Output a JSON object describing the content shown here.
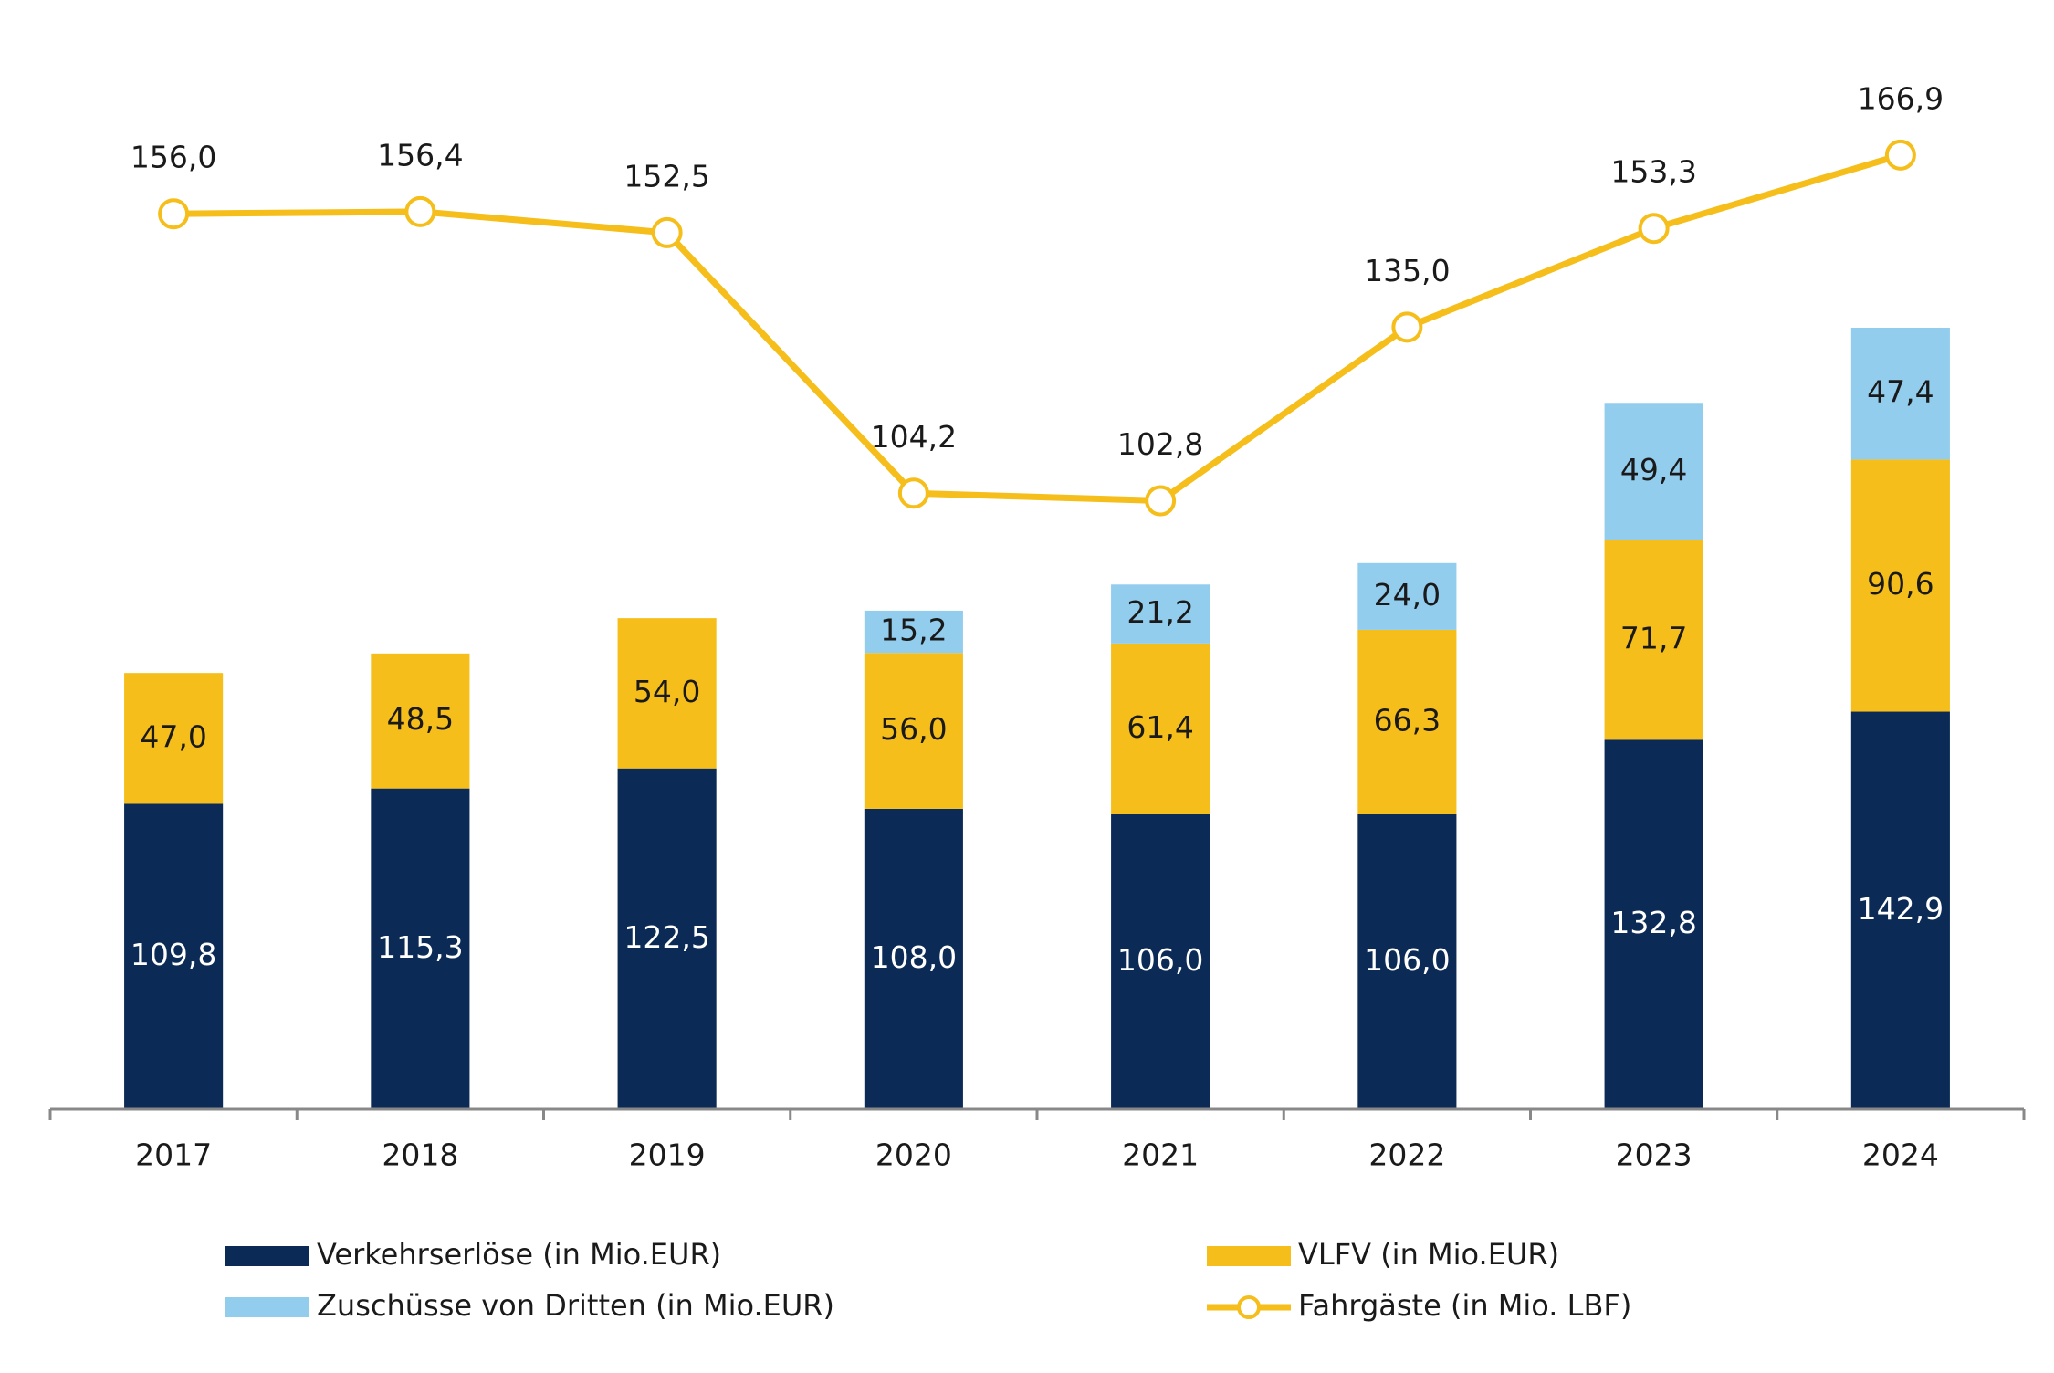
{
  "chart_data": {
    "type": "bar",
    "stacked": true,
    "categories": [
      "2017",
      "2018",
      "2019",
      "2020",
      "2021",
      "2022",
      "2023",
      "2024"
    ],
    "series": [
      {
        "name": "Verkehrserlöse  (in Mio.EUR)",
        "color": "#0b2a55",
        "label_color": "#ffffff",
        "values": [
          109.8,
          115.3,
          122.5,
          108.0,
          106.0,
          106.0,
          132.8,
          142.9
        ],
        "value_labels": [
          "109,8",
          "115,3",
          "122,5",
          "108,0",
          "106,0",
          "106,0",
          "132,8",
          "142,9"
        ]
      },
      {
        "name": "VLFV (in Mio.EUR)",
        "color": "#f5be1a",
        "label_color": "#1a1a1a",
        "values": [
          47.0,
          48.5,
          54.0,
          56.0,
          61.4,
          66.3,
          71.7,
          90.6
        ],
        "value_labels": [
          "47,0",
          "48,5",
          "54,0",
          "56,0",
          "61,4",
          "66,3",
          "71,7",
          "90,6"
        ]
      },
      {
        "name": "Zuschüsse von Dritten  (in Mio.EUR)",
        "color": "#93cdee",
        "label_color": "#1a1a1a",
        "values": [
          null,
          null,
          null,
          15.2,
          21.2,
          24.0,
          49.4,
          47.4
        ],
        "value_labels": [
          null,
          null,
          null,
          "15,2",
          "21,2",
          "24,0",
          "49,4",
          "47,4"
        ]
      },
      {
        "name": "Fahrgäste (in Mio. LBF)",
        "type": "line",
        "axis": "y2",
        "color": "#f5be1a",
        "label_color": "#1a1a1a",
        "values": [
          156.0,
          156.4,
          152.5,
          104.2,
          102.8,
          135.0,
          153.3,
          166.9
        ],
        "value_labels": [
          "156,0",
          "156,4",
          "152,5",
          "104,2",
          "102,8",
          "135,0",
          "153,3",
          "166,9"
        ]
      }
    ],
    "ylim": [
      0,
      380
    ],
    "y2lim": [
      -10,
      186
    ],
    "grid": false
  }
}
